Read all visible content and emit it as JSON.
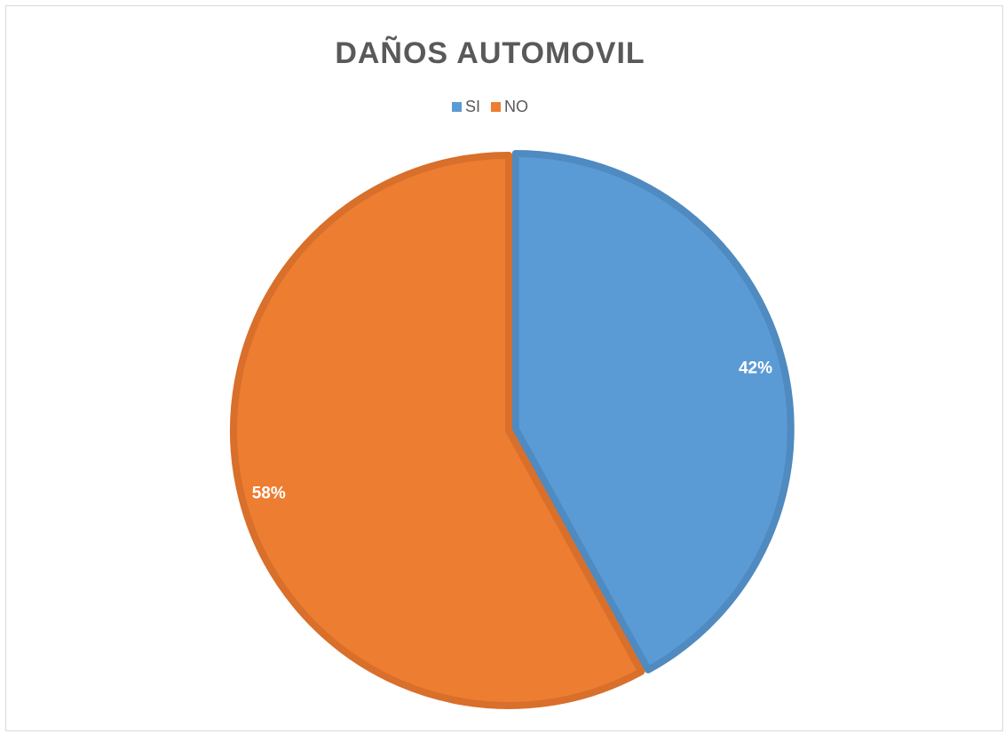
{
  "chart_data": {
    "type": "pie",
    "title": "DAÑOS AUTOMOVIL",
    "legend_position": "top",
    "slices": [
      {
        "name": "SI",
        "value": 42,
        "label": "42%",
        "color": "#5b9bd5",
        "border_color": "#4f8ac0"
      },
      {
        "name": "NO",
        "value": 58,
        "label": "58%",
        "color": "#ed7d31",
        "border_color": "#d86f2a"
      }
    ]
  }
}
